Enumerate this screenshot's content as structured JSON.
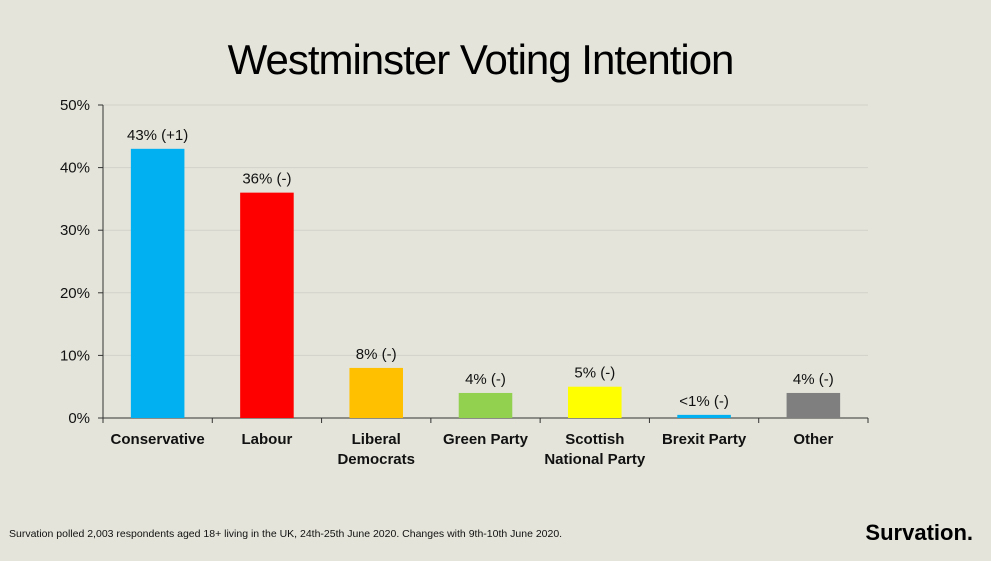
{
  "chart_data": {
    "type": "bar",
    "title": "Westminster Voting Intention",
    "categories": [
      [
        "Conservative"
      ],
      [
        "Labour"
      ],
      [
        "Liberal",
        "Democrats"
      ],
      [
        "Green Party"
      ],
      [
        "Scottish",
        "National Party"
      ],
      [
        "Brexit Party"
      ],
      [
        "Other"
      ]
    ],
    "values": [
      43,
      36,
      8,
      4,
      5,
      0.5,
      4
    ],
    "data_labels": [
      "43% (+1)",
      "36% (-)",
      "8% (-)",
      "4% (-)",
      "5% (-)",
      "<1% (-)",
      "4% (-)"
    ],
    "colors": [
      "#00b0f0",
      "#ff0000",
      "#ffc000",
      "#92d050",
      "#ffff00",
      "#00b0f0",
      "#7f7f7f"
    ],
    "yticks": [
      "0%",
      "10%",
      "20%",
      "30%",
      "40%",
      "50%"
    ],
    "ylim": [
      0,
      50
    ],
    "grid": true,
    "legend": "none"
  },
  "footnote": "Survation polled 2,003 respondents aged 18+ living in the UK, 24th-25th June 2020. Changes with 9th-10th June 2020.",
  "brand": "Survation."
}
